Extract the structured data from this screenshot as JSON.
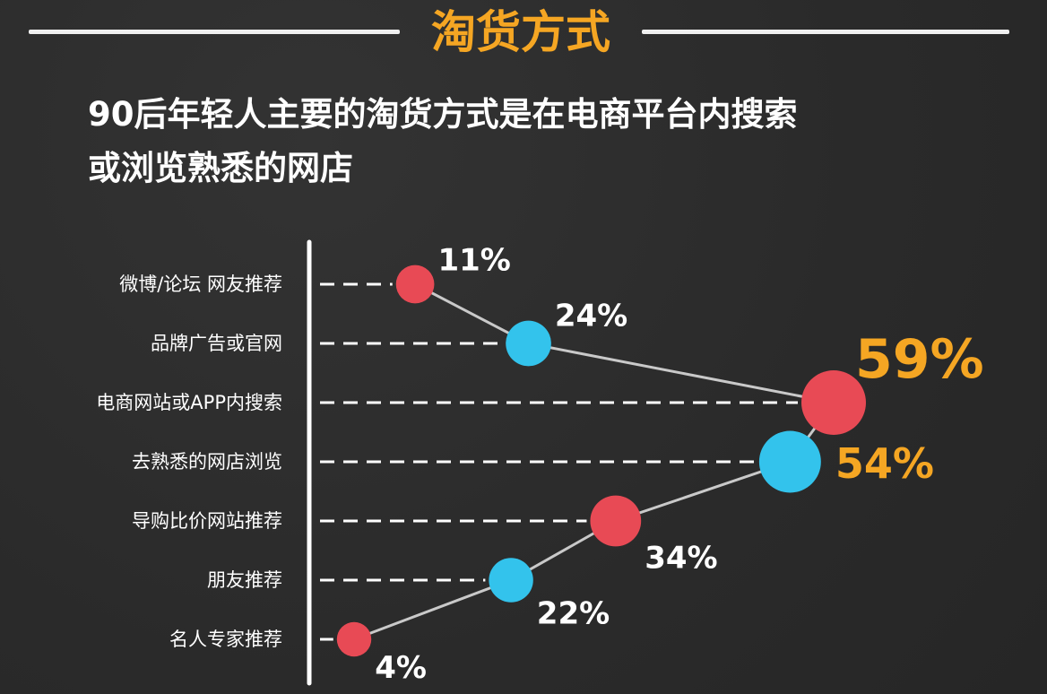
{
  "header": {
    "title": "淘货方式",
    "subtitle_line1": "90后年轻人主要的淘货方式是在电商平台内搜索",
    "subtitle_line2": "或浏览熟悉的网店"
  },
  "colors": {
    "red": "#e84a55",
    "blue": "#33c3ec",
    "orange": "#f5a623",
    "white": "#ffffff",
    "line": "#c9c9c9"
  },
  "chart_data": {
    "type": "line",
    "categories": [
      "微博/论坛 网友推荐",
      "品牌广告或官网",
      "电商网站或APP内搜索",
      "去熟悉的网店浏览",
      "导购比价网站推荐",
      "朋友推荐",
      "名人专家推荐"
    ],
    "values": [
      11,
      24,
      59,
      54,
      34,
      22,
      4
    ],
    "labels": [
      "11%",
      "24%",
      "59%",
      "54%",
      "34%",
      "22%",
      "4%"
    ],
    "marker_colors": [
      "red",
      "blue",
      "red",
      "blue",
      "red",
      "blue",
      "red"
    ],
    "highlight": [
      false,
      false,
      true,
      true,
      false,
      false,
      false
    ],
    "unit": "%"
  }
}
